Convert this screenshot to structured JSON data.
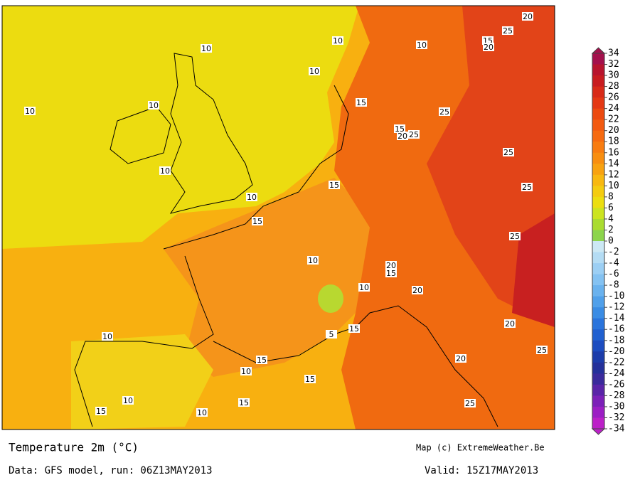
{
  "map": {
    "title": "Temperature 2m (°C)",
    "credit": "Map (c) ExtremeWeather.Be",
    "source": "Data: GFS model, run: 06Z13MAY2013",
    "valid": "Valid: 15Z17MAY2013",
    "contour_labels": [
      10,
      10,
      10,
      10,
      10,
      10,
      10,
      10,
      10,
      10,
      10,
      10,
      10,
      10,
      15,
      15,
      15,
      15,
      15,
      15,
      15,
      15,
      15,
      15,
      15,
      20,
      20,
      20,
      20,
      20,
      20,
      20,
      25,
      25,
      25,
      25,
      25,
      25,
      25,
      25,
      5
    ]
  },
  "colorbar": {
    "ticks": [
      34,
      32,
      30,
      28,
      26,
      24,
      22,
      20,
      18,
      16,
      14,
      12,
      10,
      8,
      6,
      4,
      2,
      0,
      -2,
      -4,
      -6,
      -8,
      -10,
      -12,
      -14,
      -16,
      -18,
      -20,
      -22,
      -24,
      -26,
      -28,
      -30,
      -32,
      -34
    ],
    "colors": [
      "#a4104c",
      "#b8142e",
      "#c81c20",
      "#d82a18",
      "#e43814",
      "#ec4a10",
      "#f25a10",
      "#f66a10",
      "#f87c10",
      "#f88e10",
      "#f8a210",
      "#f8b810",
      "#f4cc10",
      "#ecde10",
      "#cce420",
      "#aadc30",
      "#8cd44c",
      "#cce8f4",
      "#b4dcf4",
      "#9ccff4",
      "#84c2f2",
      "#6ab2ee",
      "#50a0ea",
      "#3a8ce4",
      "#2a74dc",
      "#2060d0",
      "#1c4cc0",
      "#1c3caa",
      "#24309a",
      "#3a2a9c",
      "#5a24a8",
      "#7c20b8",
      "#9c1ec4",
      "#bc20c8"
    ]
  }
}
